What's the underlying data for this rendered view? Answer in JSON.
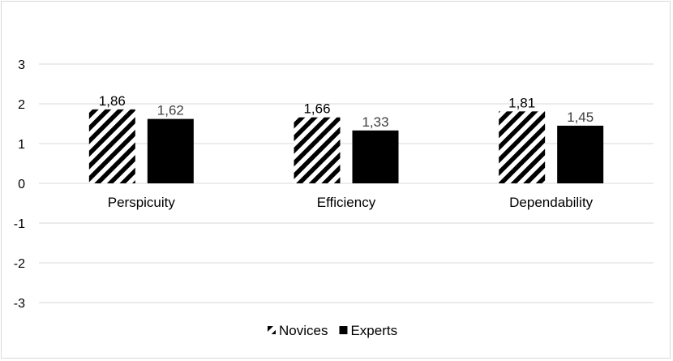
{
  "chart_data": {
    "type": "bar",
    "title": "",
    "xlabel": "",
    "ylabel": "",
    "categories": [
      "Perspicuity",
      "Efficiency",
      "Dependability"
    ],
    "series": [
      {
        "name": "Novices",
        "values": [
          1.86,
          1.66,
          1.81
        ],
        "labels": [
          "1,86",
          "1,66",
          "1,81"
        ],
        "pattern": "diagonal-stripes",
        "color": "#000000",
        "label_color": "#000000"
      },
      {
        "name": "Experts",
        "values": [
          1.62,
          1.33,
          1.45
        ],
        "labels": [
          "1,62",
          "1,33",
          "1,45"
        ],
        "pattern": "solid",
        "color": "#000000",
        "label_color": "#404040"
      }
    ],
    "ylim": [
      -3,
      3
    ],
    "yticks": [
      3,
      2,
      1,
      0,
      -1,
      -2,
      -3
    ],
    "ytick_labels": [
      "3",
      "2",
      "1",
      "0",
      "-1",
      "-2",
      "-3"
    ],
    "grid": true,
    "grid_color": "#d9d9d9",
    "legend_position": "bottom"
  }
}
